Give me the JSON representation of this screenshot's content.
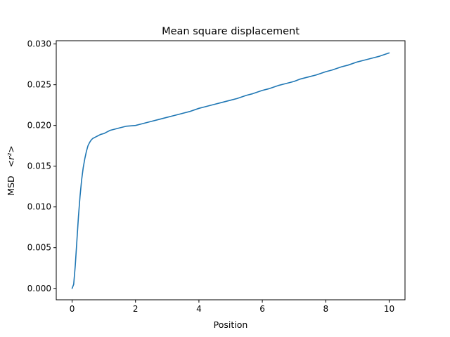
{
  "chart_data": {
    "type": "line",
    "title": "Mean square displacement",
    "xlabel": "Position",
    "ylabel_prefix": "MSD",
    "ylabel_math": "<r²>",
    "xlim": [
      -0.5,
      10.5
    ],
    "ylim": [
      -0.0014,
      0.0304
    ],
    "xticks": [
      0,
      2,
      4,
      6,
      8,
      10
    ],
    "xtick_labels": [
      "0",
      "2",
      "4",
      "6",
      "8",
      "10"
    ],
    "yticks": [
      0.0,
      0.005,
      0.01,
      0.015,
      0.02,
      0.025,
      0.03
    ],
    "ytick_labels": [
      "0.000",
      "0.005",
      "0.010",
      "0.015",
      "0.020",
      "0.025",
      "0.030"
    ],
    "grid": false,
    "series": [
      {
        "color": "#1f77b4",
        "x": [
          0,
          0.05,
          0.1,
          0.15,
          0.2,
          0.25,
          0.3,
          0.35,
          0.4,
          0.45,
          0.5,
          0.55,
          0.6,
          0.65,
          0.7,
          0.75,
          0.8,
          0.9,
          1.0,
          1.1,
          1.2,
          1.3,
          1.5,
          1.7,
          2.0,
          2.2,
          2.5,
          2.7,
          3.0,
          3.2,
          3.5,
          3.7,
          4.0,
          4.2,
          4.5,
          4.7,
          5.0,
          5.2,
          5.5,
          5.7,
          6.0,
          6.2,
          6.5,
          6.7,
          7.0,
          7.2,
          7.5,
          7.7,
          8.0,
          8.2,
          8.5,
          8.7,
          9.0,
          9.2,
          9.5,
          9.7,
          10.0
        ],
        "y": [
          0.0,
          0.0005,
          0.0028,
          0.0058,
          0.0088,
          0.0113,
          0.0133,
          0.0148,
          0.0159,
          0.0168,
          0.0175,
          0.0179,
          0.0182,
          0.0184,
          0.0185,
          0.0186,
          0.0187,
          0.0189,
          0.019,
          0.0192,
          0.0194,
          0.0195,
          0.0197,
          0.0199,
          0.02,
          0.0202,
          0.0205,
          0.0207,
          0.021,
          0.0212,
          0.0215,
          0.0217,
          0.0221,
          0.0223,
          0.0226,
          0.0228,
          0.0231,
          0.0233,
          0.0237,
          0.0239,
          0.0243,
          0.0245,
          0.0249,
          0.0251,
          0.0254,
          0.0257,
          0.026,
          0.0262,
          0.0266,
          0.0268,
          0.0272,
          0.0274,
          0.0278,
          0.028,
          0.0283,
          0.0285,
          0.0289
        ]
      }
    ]
  }
}
